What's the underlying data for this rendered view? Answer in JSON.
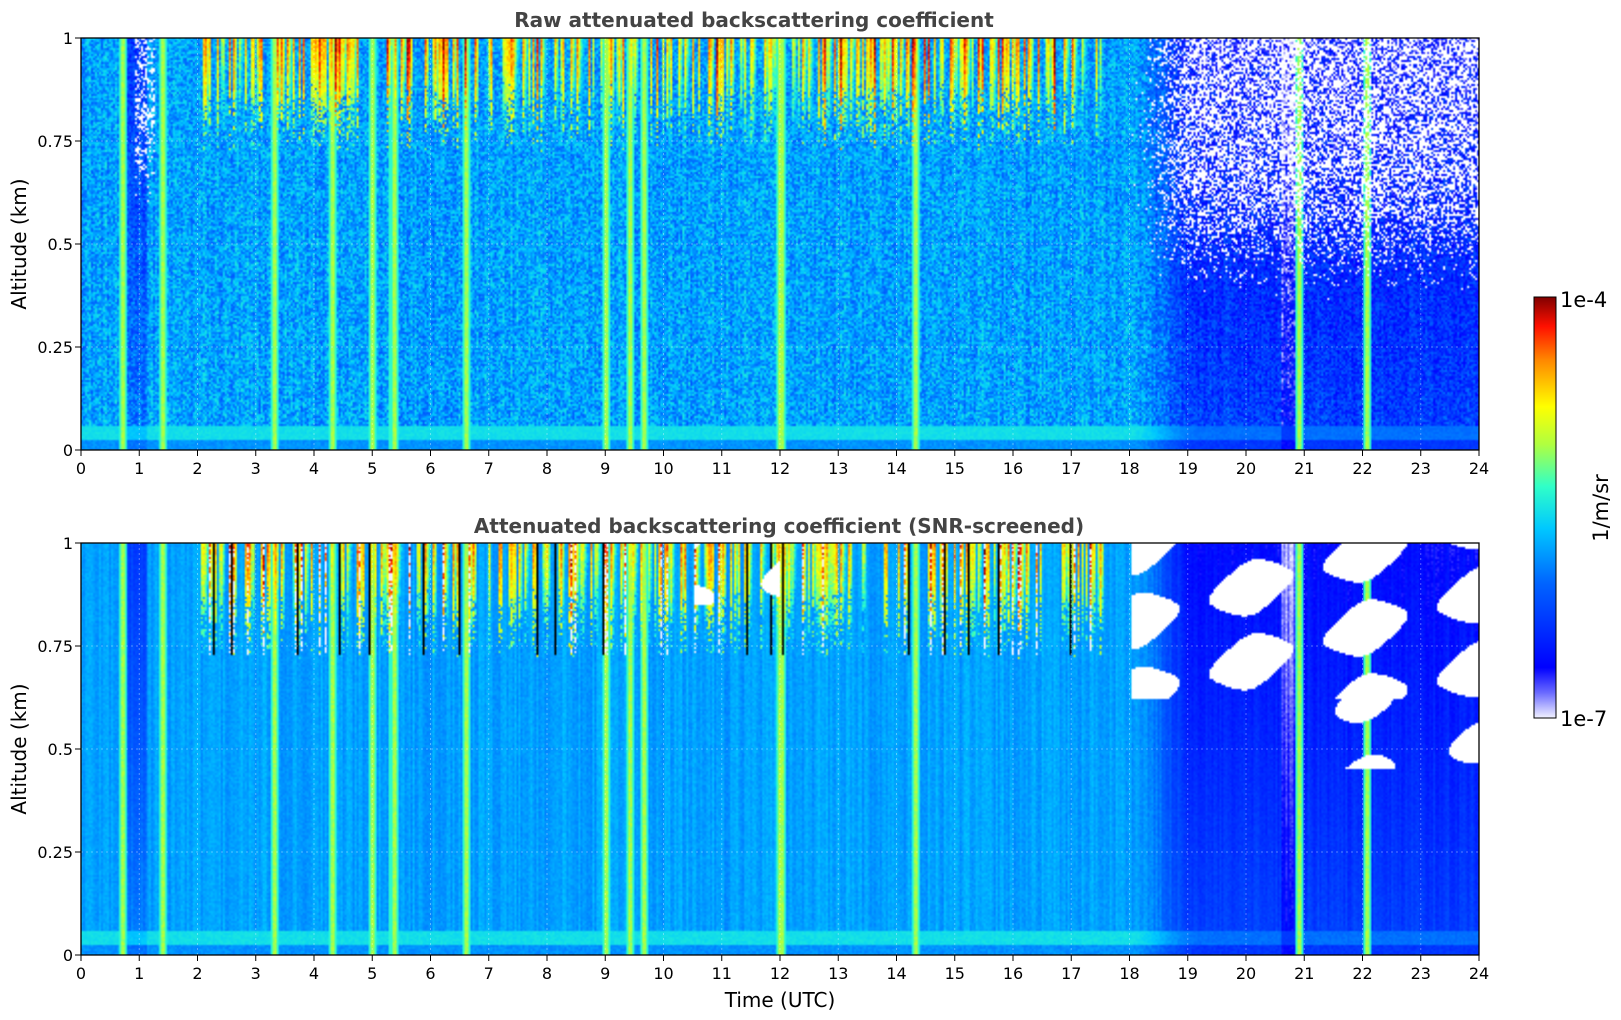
{
  "chart_data": [
    {
      "type": "heatmap",
      "title": "Raw attenuated backscattering coefficient",
      "xlabel": "",
      "ylabel": "Altitude (km)",
      "xlim": [
        0,
        24
      ],
      "ylim": [
        0,
        1
      ],
      "xticks": [
        "0",
        "1",
        "2",
        "3",
        "4",
        "5",
        "6",
        "7",
        "8",
        "9",
        "10",
        "11",
        "12",
        "13",
        "14",
        "15",
        "16",
        "17",
        "18",
        "19",
        "20",
        "21",
        "22",
        "23",
        "24"
      ],
      "yticks": [
        "0",
        "0.25",
        "0.5",
        "0.75",
        "1"
      ],
      "grid": true,
      "screened": false
    },
    {
      "type": "heatmap",
      "title": "Attenuated backscattering coefficient (SNR-screened)",
      "xlabel": "Time (UTC)",
      "ylabel": "Altitude (km)",
      "xlim": [
        0,
        24
      ],
      "ylim": [
        0,
        1
      ],
      "xticks": [
        "0",
        "1",
        "2",
        "3",
        "4",
        "5",
        "6",
        "7",
        "8",
        "9",
        "10",
        "11",
        "12",
        "13",
        "14",
        "15",
        "16",
        "17",
        "18",
        "19",
        "20",
        "21",
        "22",
        "23",
        "24"
      ],
      "yticks": [
        "0",
        "0.25",
        "0.5",
        "0.75",
        "1"
      ],
      "grid": true,
      "screened": true
    }
  ],
  "colorbar": {
    "max_label": "1e-4",
    "min_label": "1e-7",
    "unit_label": "1/m/sr",
    "colormap": "jet",
    "scale": "log"
  },
  "features": {
    "bright_vertical_streak_times_utc": [
      0.7,
      1.4,
      3.3,
      4.3,
      5.0,
      5.35,
      6.6,
      9.0,
      9.4,
      9.65,
      12.0,
      14.3,
      20.9,
      22.05
    ],
    "high_cloud_period_utc": [
      2.0,
      17.5
    ],
    "clean_period_utc": [
      18.0,
      24.0
    ]
  }
}
